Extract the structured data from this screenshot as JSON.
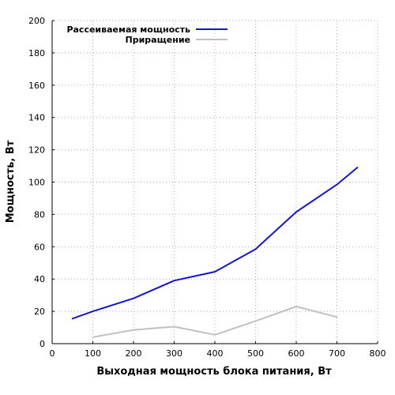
{
  "chart_data": {
    "type": "line",
    "xlabel": "Выходная мощность блока питания, Вт",
    "ylabel": "Мощность, Вт",
    "xlim": [
      0,
      800
    ],
    "ylim": [
      0,
      200
    ],
    "xticks": [
      0,
      100,
      200,
      300,
      400,
      500,
      600,
      700,
      800
    ],
    "yticks": [
      0,
      20,
      40,
      60,
      80,
      100,
      120,
      140,
      160,
      180,
      200
    ],
    "grid": true,
    "legend_position": "top-left",
    "series": [
      {
        "name": "Рассеиваемая мощность",
        "color": "#1414d2",
        "points": [
          [
            50,
            15.5
          ],
          [
            100,
            20
          ],
          [
            200,
            28
          ],
          [
            300,
            39
          ],
          [
            400,
            44.5
          ],
          [
            500,
            58.5
          ],
          [
            600,
            81.5
          ],
          [
            700,
            98.5
          ],
          [
            750,
            109
          ]
        ]
      },
      {
        "name": "Приращение",
        "color": "#c0c0c0",
        "points": [
          [
            100,
            4
          ],
          [
            200,
            8.5
          ],
          [
            300,
            10.5
          ],
          [
            400,
            5.5
          ],
          [
            500,
            14
          ],
          [
            600,
            23
          ],
          [
            700,
            16.5
          ]
        ]
      }
    ]
  }
}
